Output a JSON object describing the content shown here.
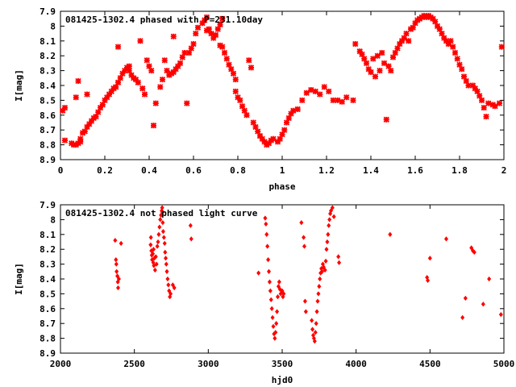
{
  "chart_data": [
    {
      "type": "scatter",
      "title": "081425-1302.4 phased with P=231.10day",
      "xlabel": "phase",
      "ylabel": "I[mag]",
      "xlim": [
        0,
        2
      ],
      "ylim": [
        7.9,
        8.9
      ],
      "y_inverted": true,
      "xticks": [
        "0",
        "0.2",
        "0.4",
        "0.6",
        "0.8",
        "1",
        "1.2",
        "1.4",
        "1.6",
        "1.8",
        "2"
      ],
      "yticks": [
        "7.9",
        "8",
        "8.1",
        "8.2",
        "8.3",
        "8.4",
        "8.5",
        "8.6",
        "8.7",
        "8.8",
        "8.9"
      ],
      "marker": "cross",
      "color": "#ff0000",
      "points": [
        [
          0.01,
          8.57
        ],
        [
          0.02,
          8.55
        ],
        [
          0.02,
          8.77
        ],
        [
          0.05,
          8.79
        ],
        [
          0.06,
          8.8
        ],
        [
          0.07,
          8.8
        ],
        [
          0.08,
          8.79
        ],
        [
          0.09,
          8.78
        ],
        [
          0.07,
          8.48
        ],
        [
          0.08,
          8.37
        ],
        [
          0.09,
          8.76
        ],
        [
          0.1,
          8.72
        ],
        [
          0.11,
          8.71
        ],
        [
          0.12,
          8.46
        ],
        [
          0.12,
          8.68
        ],
        [
          0.13,
          8.66
        ],
        [
          0.14,
          8.64
        ],
        [
          0.15,
          8.62
        ],
        [
          0.16,
          8.61
        ],
        [
          0.17,
          8.58
        ],
        [
          0.18,
          8.55
        ],
        [
          0.19,
          8.53
        ],
        [
          0.2,
          8.5
        ],
        [
          0.21,
          8.48
        ],
        [
          0.22,
          8.46
        ],
        [
          0.23,
          8.44
        ],
        [
          0.24,
          8.42
        ],
        [
          0.25,
          8.41
        ],
        [
          0.26,
          8.38
        ],
        [
          0.27,
          8.35
        ],
        [
          0.28,
          8.32
        ],
        [
          0.29,
          8.3
        ],
        [
          0.3,
          8.28
        ],
        [
          0.31,
          8.3
        ],
        [
          0.32,
          8.33
        ],
        [
          0.33,
          8.35
        ],
        [
          0.34,
          8.36
        ],
        [
          0.26,
          8.14
        ],
        [
          0.31,
          8.27
        ],
        [
          0.35,
          8.38
        ],
        [
          0.36,
          8.1
        ],
        [
          0.37,
          8.42
        ],
        [
          0.38,
          8.46
        ],
        [
          0.39,
          8.23
        ],
        [
          0.4,
          8.27
        ],
        [
          0.41,
          8.3
        ],
        [
          0.42,
          8.67
        ],
        [
          0.43,
          8.52
        ],
        [
          0.45,
          8.41
        ],
        [
          0.46,
          8.36
        ],
        [
          0.47,
          8.23
        ],
        [
          0.48,
          8.3
        ],
        [
          0.49,
          8.33
        ],
        [
          0.5,
          8.32
        ],
        [
          0.51,
          8.31
        ],
        [
          0.52,
          8.29
        ],
        [
          0.51,
          8.07
        ],
        [
          0.53,
          8.27
        ],
        [
          0.54,
          8.25
        ],
        [
          0.55,
          8.21
        ],
        [
          0.56,
          8.18
        ],
        [
          0.57,
          8.52
        ],
        [
          0.58,
          8.18
        ],
        [
          0.59,
          8.15
        ],
        [
          0.6,
          8.12
        ],
        [
          0.61,
          8.05
        ],
        [
          0.62,
          8.01
        ],
        [
          0.64,
          7.98
        ],
        [
          0.65,
          7.96
        ],
        [
          0.66,
          7.94
        ],
        [
          0.66,
          8.03
        ],
        [
          0.67,
          8.02
        ],
        [
          0.68,
          8.05
        ],
        [
          0.69,
          8.08
        ],
        [
          0.7,
          8.06
        ],
        [
          0.71,
          8.02
        ],
        [
          0.72,
          7.99
        ],
        [
          0.73,
          7.95
        ],
        [
          0.72,
          8.13
        ],
        [
          0.73,
          8.14
        ],
        [
          0.74,
          8.18
        ],
        [
          0.75,
          8.22
        ],
        [
          0.76,
          8.26
        ],
        [
          0.77,
          8.29
        ],
        [
          0.78,
          8.32
        ],
        [
          0.79,
          8.36
        ],
        [
          0.79,
          8.44
        ],
        [
          0.8,
          8.48
        ],
        [
          0.81,
          8.5
        ],
        [
          0.82,
          8.54
        ],
        [
          0.83,
          8.57
        ],
        [
          0.84,
          8.6
        ],
        [
          0.85,
          8.23
        ],
        [
          0.86,
          8.28
        ],
        [
          0.87,
          8.65
        ],
        [
          0.88,
          8.68
        ],
        [
          0.89,
          8.71
        ],
        [
          0.9,
          8.74
        ],
        [
          0.91,
          8.76
        ],
        [
          0.92,
          8.78
        ],
        [
          0.93,
          8.8
        ],
        [
          0.94,
          8.79
        ],
        [
          0.95,
          8.77
        ],
        [
          0.96,
          8.76
        ],
        [
          0.98,
          8.78
        ],
        [
          0.99,
          8.76
        ],
        [
          1.0,
          8.73
        ],
        [
          1.01,
          8.7
        ],
        [
          1.02,
          8.65
        ],
        [
          1.03,
          8.62
        ],
        [
          1.04,
          8.59
        ],
        [
          1.05,
          8.57
        ],
        [
          1.07,
          8.56
        ],
        [
          1.09,
          8.5
        ],
        [
          1.11,
          8.45
        ],
        [
          1.13,
          8.43
        ],
        [
          1.15,
          8.44
        ],
        [
          1.17,
          8.46
        ],
        [
          1.19,
          8.41
        ],
        [
          1.21,
          8.44
        ],
        [
          1.23,
          8.5
        ],
        [
          1.25,
          8.5
        ],
        [
          1.27,
          8.51
        ],
        [
          1.29,
          8.48
        ],
        [
          1.32,
          8.5
        ],
        [
          1.33,
          8.12
        ],
        [
          1.35,
          8.17
        ],
        [
          1.36,
          8.19
        ],
        [
          1.37,
          8.22
        ],
        [
          1.38,
          8.25
        ],
        [
          1.39,
          8.29
        ],
        [
          1.4,
          8.31
        ],
        [
          1.41,
          8.22
        ],
        [
          1.42,
          8.34
        ],
        [
          1.43,
          8.2
        ],
        [
          1.44,
          8.3
        ],
        [
          1.45,
          8.18
        ],
        [
          1.46,
          8.25
        ],
        [
          1.47,
          8.63
        ],
        [
          1.48,
          8.27
        ],
        [
          1.49,
          8.3
        ],
        [
          1.5,
          8.21
        ],
        [
          1.51,
          8.18
        ],
        [
          1.52,
          8.15
        ],
        [
          1.53,
          8.12
        ],
        [
          1.54,
          8.1
        ],
        [
          1.55,
          8.08
        ],
        [
          1.56,
          8.05
        ],
        [
          1.57,
          8.1
        ],
        [
          1.58,
          8.02
        ],
        [
          1.59,
          8.01
        ],
        [
          1.6,
          7.98
        ],
        [
          1.61,
          7.96
        ],
        [
          1.62,
          7.95
        ],
        [
          1.63,
          7.94
        ],
        [
          1.64,
          7.93
        ],
        [
          1.65,
          7.94
        ],
        [
          1.66,
          7.93
        ],
        [
          1.67,
          7.94
        ],
        [
          1.68,
          7.95
        ],
        [
          1.69,
          7.97
        ],
        [
          1.7,
          8.0
        ],
        [
          1.71,
          8.02
        ],
        [
          1.72,
          8.05
        ],
        [
          1.73,
          8.08
        ],
        [
          1.74,
          8.1
        ],
        [
          1.75,
          8.12
        ],
        [
          1.76,
          8.1
        ],
        [
          1.77,
          8.14
        ],
        [
          1.78,
          8.18
        ],
        [
          1.79,
          8.22
        ],
        [
          1.8,
          8.26
        ],
        [
          1.81,
          8.29
        ],
        [
          1.82,
          8.34
        ],
        [
          1.83,
          8.37
        ],
        [
          1.84,
          8.4
        ],
        [
          1.86,
          8.4
        ],
        [
          1.87,
          8.42
        ],
        [
          1.88,
          8.44
        ],
        [
          1.89,
          8.47
        ],
        [
          1.9,
          8.5
        ],
        [
          1.91,
          8.55
        ],
        [
          1.92,
          8.61
        ],
        [
          1.93,
          8.52
        ],
        [
          1.95,
          8.53
        ],
        [
          1.96,
          8.54
        ],
        [
          1.98,
          8.52
        ],
        [
          1.99,
          8.14
        ]
      ]
    },
    {
      "type": "scatter",
      "title": "081425-1302.4 not phased light curve",
      "xlabel": "hjd0",
      "ylabel": "I[mag]",
      "xlim": [
        2000,
        5000
      ],
      "ylim": [
        7.9,
        8.9
      ],
      "y_inverted": true,
      "xticks": [
        "2000",
        "2500",
        "3000",
        "3500",
        "4000",
        "4500",
        "5000"
      ],
      "yticks": [
        "7.9",
        "8",
        "8.1",
        "8.2",
        "8.3",
        "8.4",
        "8.5",
        "8.6",
        "8.7",
        "8.8",
        "8.9"
      ],
      "marker": "diamond",
      "color": "#ff0000",
      "points": [
        [
          2370,
          8.14
        ],
        [
          2375,
          8.27
        ],
        [
          2378,
          8.3
        ],
        [
          2380,
          8.35
        ],
        [
          2385,
          8.38
        ],
        [
          2388,
          8.42
        ],
        [
          2390,
          8.46
        ],
        [
          2395,
          8.4
        ],
        [
          2410,
          8.16
        ],
        [
          2610,
          8.17
        ],
        [
          2612,
          8.12
        ],
        [
          2615,
          8.21
        ],
        [
          2618,
          8.24
        ],
        [
          2620,
          8.27
        ],
        [
          2625,
          8.23
        ],
        [
          2628,
          8.29
        ],
        [
          2630,
          8.2
        ],
        [
          2632,
          8.31
        ],
        [
          2635,
          8.26
        ],
        [
          2640,
          8.34
        ],
        [
          2645,
          8.25
        ],
        [
          2650,
          8.3
        ],
        [
          2655,
          8.18
        ],
        [
          2660,
          8.15
        ],
        [
          2665,
          8.1
        ],
        [
          2670,
          8.05
        ],
        [
          2675,
          8.0
        ],
        [
          2680,
          7.97
        ],
        [
          2685,
          7.94
        ],
        [
          2688,
          7.92
        ],
        [
          2690,
          7.95
        ],
        [
          2692,
          8.02
        ],
        [
          2695,
          8.08
        ],
        [
          2700,
          8.12
        ],
        [
          2705,
          8.16
        ],
        [
          2708,
          8.22
        ],
        [
          2712,
          8.26
        ],
        [
          2716,
          8.3
        ],
        [
          2720,
          8.35
        ],
        [
          2725,
          8.4
        ],
        [
          2730,
          8.44
        ],
        [
          2735,
          8.48
        ],
        [
          2740,
          8.52
        ],
        [
          2745,
          8.5
        ],
        [
          2760,
          8.44
        ],
        [
          2770,
          8.46
        ],
        [
          2880,
          8.04
        ],
        [
          2885,
          8.13
        ],
        [
          3340,
          8.36
        ],
        [
          3385,
          7.99
        ],
        [
          3390,
          8.03
        ],
        [
          3395,
          8.1
        ],
        [
          3400,
          8.18
        ],
        [
          3405,
          8.27
        ],
        [
          3410,
          8.35
        ],
        [
          3415,
          8.42
        ],
        [
          3420,
          8.48
        ],
        [
          3425,
          8.54
        ],
        [
          3430,
          8.6
        ],
        [
          3435,
          8.66
        ],
        [
          3440,
          8.72
        ],
        [
          3445,
          8.77
        ],
        [
          3450,
          8.8
        ],
        [
          3455,
          8.76
        ],
        [
          3460,
          8.7
        ],
        [
          3465,
          8.62
        ],
        [
          3470,
          8.52
        ],
        [
          3475,
          8.45
        ],
        [
          3480,
          8.42
        ],
        [
          3485,
          8.47
        ],
        [
          3490,
          8.5
        ],
        [
          3500,
          8.48
        ],
        [
          3505,
          8.52
        ],
        [
          3510,
          8.5
        ],
        [
          3630,
          8.02
        ],
        [
          3645,
          8.12
        ],
        [
          3650,
          8.18
        ],
        [
          3655,
          8.55
        ],
        [
          3660,
          8.62
        ],
        [
          3700,
          8.68
        ],
        [
          3705,
          8.74
        ],
        [
          3710,
          8.78
        ],
        [
          3715,
          8.8
        ],
        [
          3720,
          8.82
        ],
        [
          3725,
          8.76
        ],
        [
          3730,
          8.7
        ],
        [
          3735,
          8.62
        ],
        [
          3740,
          8.55
        ],
        [
          3745,
          8.5
        ],
        [
          3750,
          8.45
        ],
        [
          3755,
          8.4
        ],
        [
          3760,
          8.36
        ],
        [
          3765,
          8.33
        ],
        [
          3770,
          8.35
        ],
        [
          3775,
          8.3
        ],
        [
          3780,
          8.32
        ],
        [
          3790,
          8.34
        ],
        [
          3795,
          8.28
        ],
        [
          3800,
          8.2
        ],
        [
          3805,
          8.15
        ],
        [
          3810,
          8.1
        ],
        [
          3815,
          8.04
        ],
        [
          3820,
          8.0
        ],
        [
          3825,
          7.96
        ],
        [
          3830,
          7.94
        ],
        [
          3840,
          7.92
        ],
        [
          3850,
          7.98
        ],
        [
          3880,
          8.25
        ],
        [
          3885,
          8.29
        ],
        [
          4230,
          8.1
        ],
        [
          4480,
          8.39
        ],
        [
          4485,
          8.41
        ],
        [
          4500,
          8.26
        ],
        [
          4610,
          8.13
        ],
        [
          4720,
          8.66
        ],
        [
          4740,
          8.53
        ],
        [
          4780,
          8.19
        ],
        [
          4790,
          8.21
        ],
        [
          4800,
          8.22
        ],
        [
          4860,
          8.57
        ],
        [
          4900,
          8.4
        ],
        [
          4980,
          8.64
        ]
      ]
    }
  ]
}
